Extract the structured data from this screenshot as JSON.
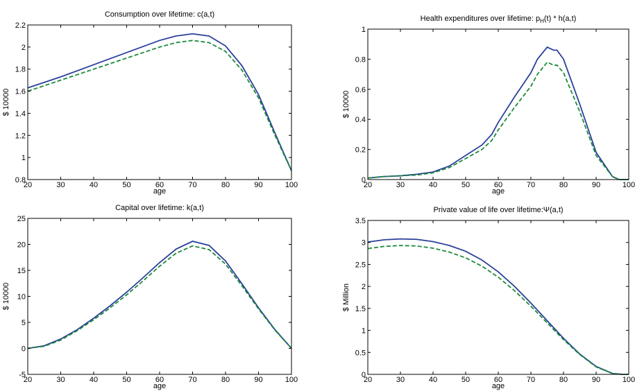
{
  "chart_data": [
    {
      "type": "line",
      "title": "Consumption over lifetime: c(a,t)",
      "xlabel": "age",
      "ylabel": "$ 10000",
      "xlim": [
        20,
        100
      ],
      "ylim": [
        0.8,
        2.2
      ],
      "xticks": [
        20,
        30,
        40,
        50,
        60,
        70,
        80,
        90,
        100
      ],
      "yticks": [
        0.8,
        1,
        1.2,
        1.4,
        1.6,
        1.8,
        2,
        2.2
      ],
      "grid": false,
      "x": [
        20,
        30,
        40,
        50,
        60,
        65,
        70,
        75,
        80,
        85,
        90,
        95,
        100
      ],
      "series": [
        {
          "style": "solid",
          "color": "#2a3f9a",
          "values": [
            1.63,
            1.73,
            1.84,
            1.95,
            2.06,
            2.1,
            2.12,
            2.1,
            2.01,
            1.83,
            1.57,
            1.22,
            0.88
          ]
        },
        {
          "style": "dashed",
          "color": "#1b8a3a",
          "values": [
            1.6,
            1.7,
            1.8,
            1.9,
            2.0,
            2.04,
            2.06,
            2.04,
            1.96,
            1.79,
            1.54,
            1.2,
            0.88
          ]
        }
      ]
    },
    {
      "type": "line",
      "title": "Health expenditures over lifetime: p_H(t) * h(a,t)",
      "xlabel": "age",
      "ylabel": "$ 10000",
      "xlim": [
        20,
        100
      ],
      "ylim": [
        0,
        1
      ],
      "xticks": [
        20,
        30,
        40,
        50,
        60,
        70,
        80,
        90,
        100
      ],
      "yticks": [
        0,
        0.2,
        0.4,
        0.6,
        0.8,
        1
      ],
      "grid": false,
      "x": [
        20,
        25,
        30,
        35,
        40,
        45,
        50,
        55,
        58,
        60,
        65,
        70,
        72,
        75,
        77,
        78,
        80,
        85,
        90,
        95,
        97,
        100
      ],
      "series": [
        {
          "style": "solid",
          "color": "#2a3f9a",
          "values": [
            0.01,
            0.02,
            0.025,
            0.035,
            0.05,
            0.09,
            0.16,
            0.23,
            0.3,
            0.38,
            0.55,
            0.71,
            0.8,
            0.88,
            0.86,
            0.86,
            0.8,
            0.5,
            0.18,
            0.02,
            0.0,
            0.0
          ]
        },
        {
          "style": "dashed",
          "color": "#1b8a3a",
          "values": [
            0.01,
            0.02,
            0.025,
            0.03,
            0.045,
            0.08,
            0.14,
            0.2,
            0.26,
            0.33,
            0.48,
            0.62,
            0.7,
            0.78,
            0.76,
            0.76,
            0.71,
            0.45,
            0.16,
            0.02,
            0.0,
            0.0
          ]
        }
      ]
    },
    {
      "type": "line",
      "title": "Capital over lifetime: k(a,t)",
      "xlabel": "age",
      "ylabel": "$ 10000",
      "xlim": [
        20,
        100
      ],
      "ylim": [
        -5,
        25
      ],
      "xticks": [
        20,
        30,
        40,
        50,
        60,
        70,
        80,
        90,
        100
      ],
      "yticks": [
        -5,
        0,
        5,
        10,
        15,
        20,
        25
      ],
      "grid": false,
      "x": [
        20,
        25,
        30,
        35,
        40,
        45,
        50,
        55,
        60,
        65,
        70,
        75,
        80,
        85,
        90,
        95,
        100
      ],
      "series": [
        {
          "style": "solid",
          "color": "#2a3f9a",
          "values": [
            0.0,
            0.5,
            1.8,
            3.6,
            5.8,
            8.2,
            10.8,
            13.6,
            16.5,
            19.1,
            20.6,
            19.8,
            16.8,
            12.4,
            7.8,
            3.6,
            0.0
          ]
        },
        {
          "style": "dashed",
          "color": "#1b8a3a",
          "values": [
            0.0,
            0.4,
            1.6,
            3.4,
            5.5,
            7.8,
            10.3,
            13.0,
            15.8,
            18.3,
            19.7,
            19.0,
            16.2,
            12.0,
            7.6,
            3.5,
            0.0
          ]
        }
      ]
    },
    {
      "type": "line",
      "title": "Private value of life over lifetime:Ψ(a,t)",
      "xlabel": "age",
      "ylabel": "$ Million",
      "xlim": [
        20,
        100
      ],
      "ylim": [
        0,
        3.5
      ],
      "xticks": [
        20,
        30,
        40,
        50,
        60,
        70,
        80,
        90,
        100
      ],
      "yticks": [
        0,
        0.5,
        1,
        1.5,
        2,
        2.5,
        3,
        3.5
      ],
      "grid": false,
      "x": [
        20,
        25,
        30,
        35,
        40,
        45,
        50,
        55,
        60,
        65,
        70,
        75,
        80,
        85,
        90,
        95,
        98,
        100
      ],
      "series": [
        {
          "style": "solid",
          "color": "#2a3f9a",
          "values": [
            3.01,
            3.06,
            3.08,
            3.07,
            3.02,
            2.93,
            2.8,
            2.6,
            2.33,
            2.0,
            1.62,
            1.22,
            0.82,
            0.46,
            0.18,
            0.02,
            0.0,
            0.0
          ]
        },
        {
          "style": "dashed",
          "color": "#1b8a3a",
          "values": [
            2.86,
            2.91,
            2.93,
            2.92,
            2.87,
            2.78,
            2.65,
            2.46,
            2.21,
            1.9,
            1.55,
            1.17,
            0.79,
            0.45,
            0.17,
            0.02,
            0.0,
            0.0
          ]
        }
      ]
    }
  ]
}
